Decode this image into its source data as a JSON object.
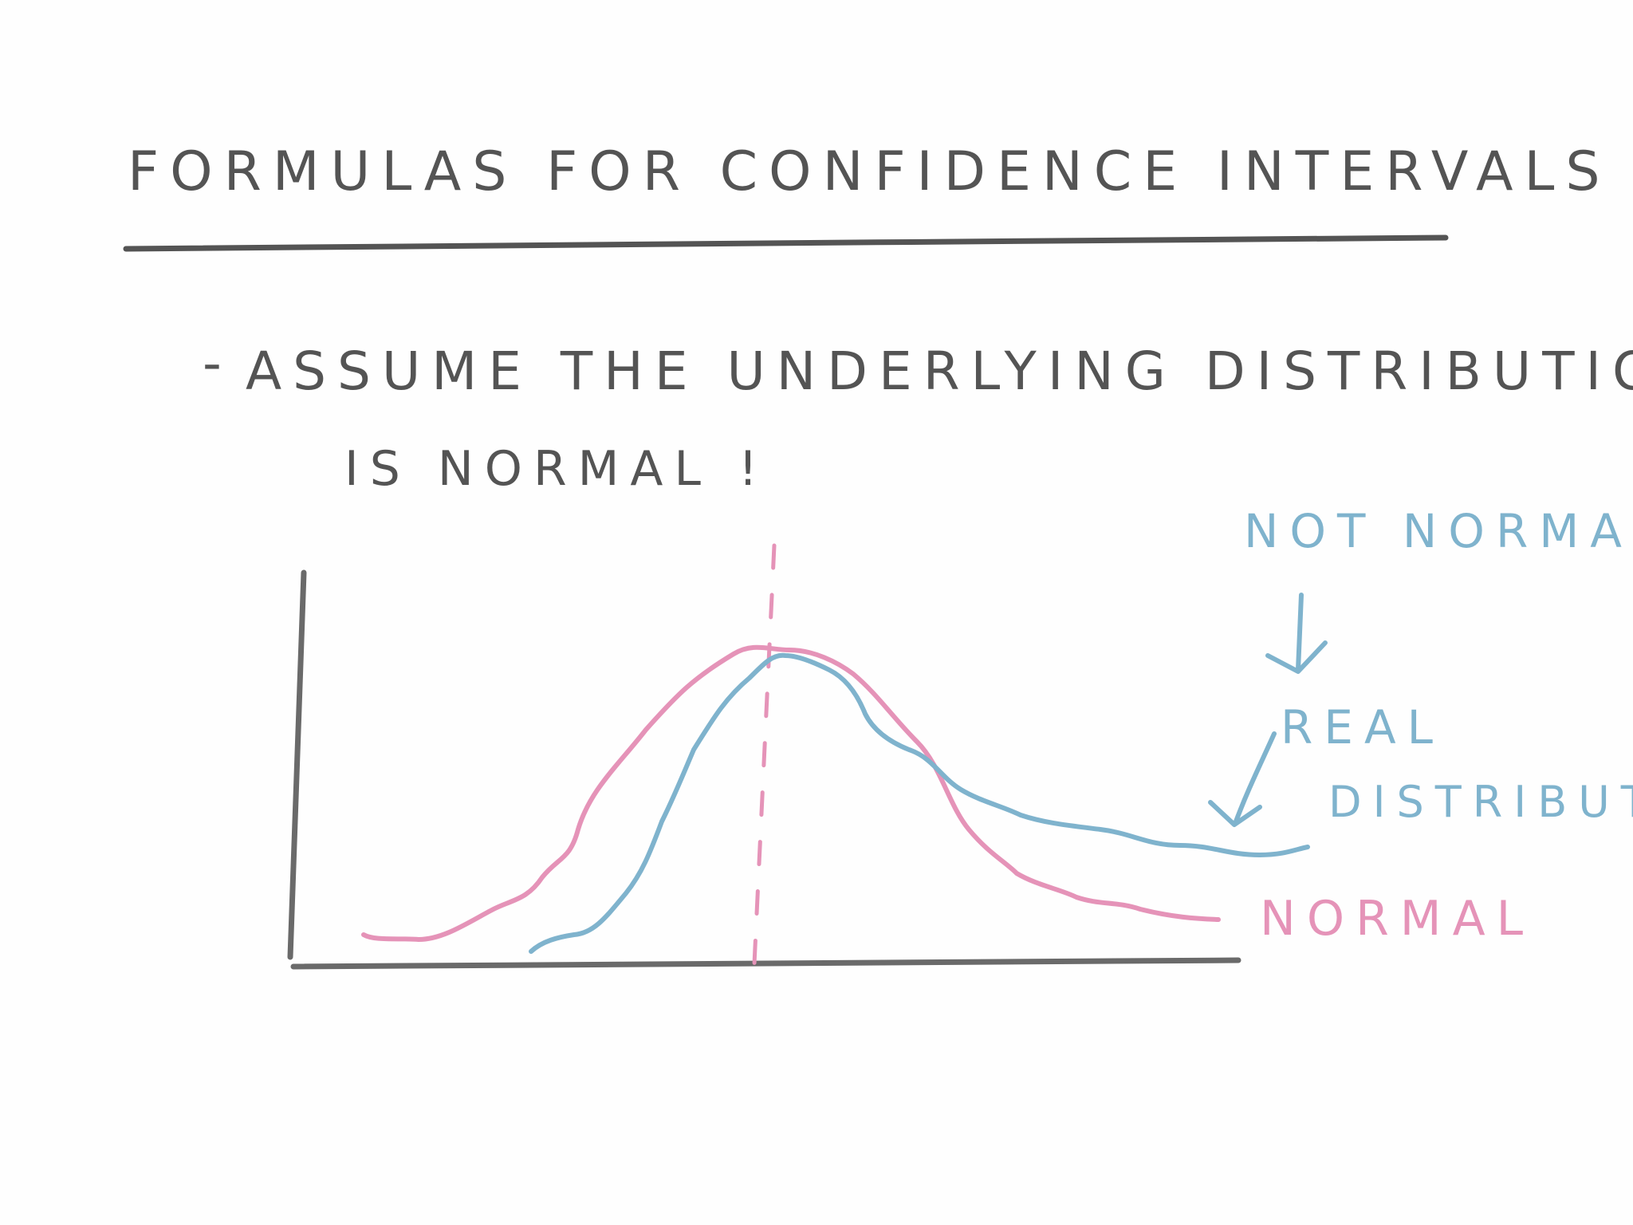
{
  "title": "FORMULAS FOR CONFIDENCE INTERVALS",
  "bullet": {
    "dash": "-",
    "line1": "ASSUME THE UNDERLYING DISTRIBUTION",
    "line2": "IS NORMAL !"
  },
  "annotations": {
    "not_normal": "NOT NORMAL",
    "real": "REAL",
    "distribution": "DISTRIBUTION",
    "normal": "NORMAL"
  },
  "colors": {
    "ink": "#545454",
    "axis": "#6a6a6a",
    "pink": "#e593b8",
    "blue": "#7fb3cd"
  }
}
